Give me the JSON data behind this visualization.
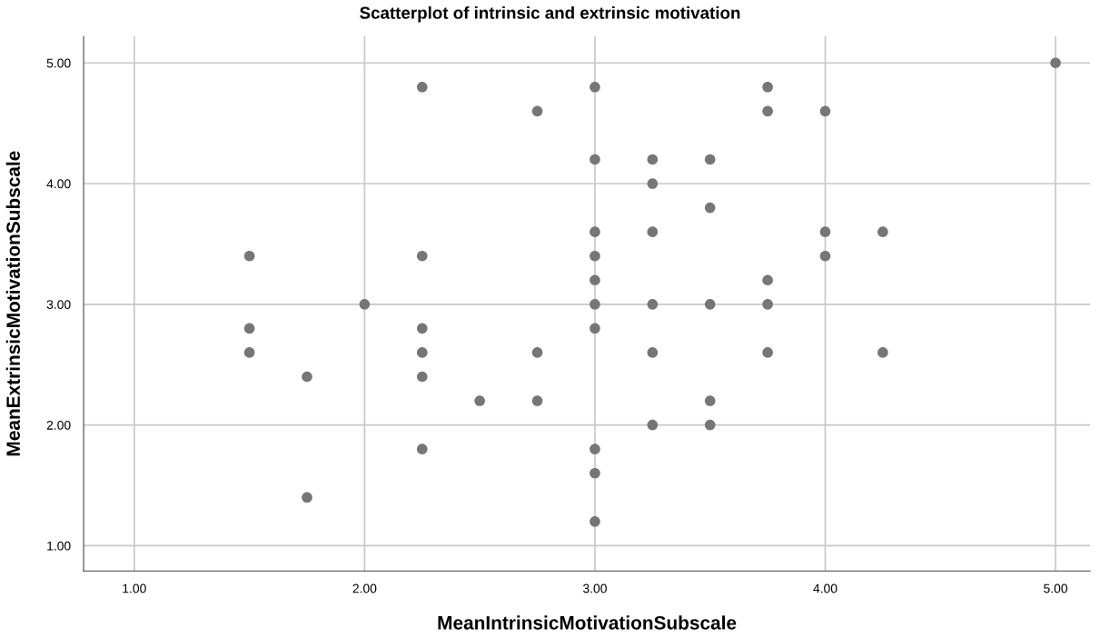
{
  "chart_data": {
    "type": "scatter",
    "title": "Scatterplot of intrinsic and extrinsic motivation",
    "xlabel": "MeanIntrinsicMotivationSubscale",
    "ylabel": "MeanExtrinsicMotivationSubscale",
    "x": [
      1.5,
      1.5,
      1.5,
      1.75,
      1.75,
      2.0,
      2.25,
      2.25,
      2.25,
      2.25,
      2.25,
      2.25,
      2.5,
      2.75,
      2.75,
      2.75,
      3.0,
      3.0,
      3.0,
      3.0,
      3.0,
      3.0,
      3.0,
      3.0,
      3.0,
      3.0,
      3.25,
      3.25,
      3.25,
      3.25,
      3.25,
      3.25,
      3.5,
      3.5,
      3.5,
      3.5,
      3.5,
      3.75,
      3.75,
      3.75,
      3.75,
      3.75,
      4.0,
      4.0,
      4.0,
      4.25,
      4.25,
      5.0
    ],
    "values": [
      3.4,
      2.8,
      2.6,
      2.4,
      1.4,
      3.0,
      4.8,
      3.4,
      2.8,
      2.6,
      2.4,
      1.8,
      2.2,
      4.6,
      2.6,
      2.2,
      4.8,
      4.2,
      3.6,
      3.4,
      3.2,
      3.0,
      2.8,
      1.8,
      1.6,
      1.2,
      4.2,
      4.0,
      3.6,
      3.0,
      2.6,
      2.0,
      4.2,
      3.8,
      3.0,
      2.2,
      2.0,
      4.8,
      4.6,
      3.2,
      3.0,
      2.6,
      4.6,
      3.6,
      3.4,
      3.6,
      2.6,
      5.0
    ],
    "color": "#767676",
    "marker": "circle",
    "grid": true,
    "xlim": [
      0.78,
      5.15
    ],
    "ylim": [
      0.79,
      5.22
    ],
    "xticks": [
      {
        "value": 1,
        "label": "1.00"
      },
      {
        "value": 2,
        "label": "2.00"
      },
      {
        "value": 3,
        "label": "3.00"
      },
      {
        "value": 4,
        "label": "4.00"
      },
      {
        "value": 5,
        "label": "5.00"
      }
    ],
    "yticks": [
      {
        "value": 1,
        "label": "1.00"
      },
      {
        "value": 2,
        "label": "2.00"
      },
      {
        "value": 3,
        "label": "3.00"
      },
      {
        "value": 4,
        "label": "4.00"
      },
      {
        "value": 5,
        "label": "5.00"
      }
    ]
  }
}
